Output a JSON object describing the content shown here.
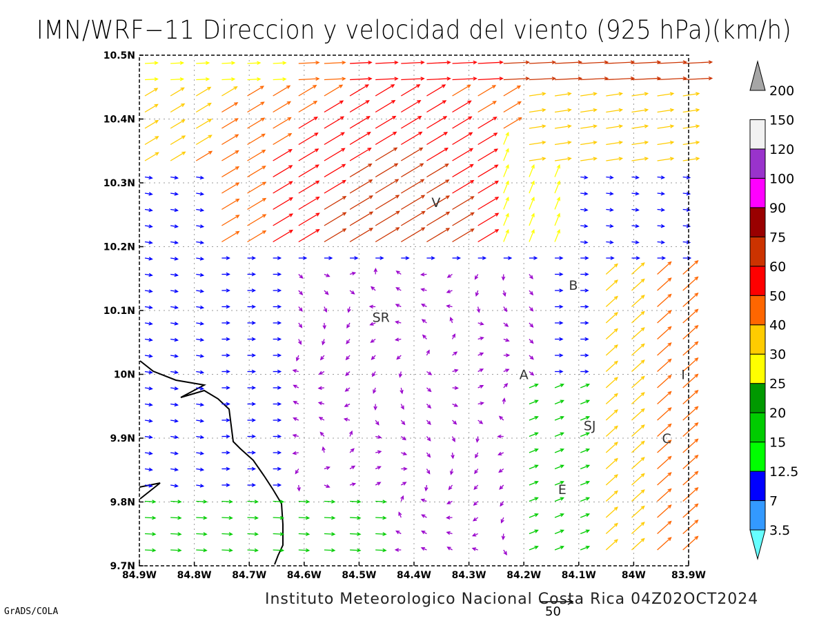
{
  "title": "IMN/WRF−11 Direccion y velocidad del viento (925 hPa)(km/h)",
  "credit": "Instituto Meteorologico Nacional Costa Rica 04Z02OCT2024",
  "software": "GrADS/COLA",
  "reference_vector": {
    "label": "50",
    "speed_kmh": 50
  },
  "map": {
    "lon_range": [
      -84.9,
      -83.9
    ],
    "lat_range": [
      9.7,
      10.5
    ],
    "x_ticks": [
      "84.9W",
      "84.8W",
      "84.7W",
      "84.6W",
      "84.5W",
      "84.4W",
      "84.3W",
      "84.2W",
      "84.1W",
      "84W",
      "83.9W"
    ],
    "y_ticks": [
      "9.7N",
      "9.8N",
      "9.9N",
      "10N",
      "10.1N",
      "10.2N",
      "10.3N",
      "10.4N",
      "10.5N"
    ],
    "grid": true,
    "place_labels": [
      {
        "text": "V",
        "lon": -84.36,
        "lat": 10.27
      },
      {
        "text": "B",
        "lon": -84.11,
        "lat": 10.14
      },
      {
        "text": "SR",
        "lon": -84.46,
        "lat": 10.09
      },
      {
        "text": "A",
        "lon": -84.2,
        "lat": 10.0
      },
      {
        "text": "I",
        "lon": -83.91,
        "lat": 10.0
      },
      {
        "text": "SJ",
        "lon": -84.08,
        "lat": 9.92
      },
      {
        "text": "C",
        "lon": -83.94,
        "lat": 9.9
      },
      {
        "text": "E",
        "lon": -84.13,
        "lat": 9.82
      }
    ]
  },
  "colorbar": {
    "labels": [
      "3.5",
      "7",
      "12.5",
      "15",
      "20",
      "25",
      "30",
      "40",
      "50",
      "60",
      "75",
      "90",
      "100",
      "120",
      "150",
      "200"
    ],
    "colors": [
      "#66ffff",
      "#3399ff",
      "#0000ff",
      "#00ff00",
      "#00cc00",
      "#009900",
      "#ffff00",
      "#ffcc00",
      "#ff6600",
      "#ff0000",
      "#cc3300",
      "#990000",
      "#ff00ff",
      "#9933cc",
      "#f2f2f2",
      "#a6a6a6"
    ]
  }
}
